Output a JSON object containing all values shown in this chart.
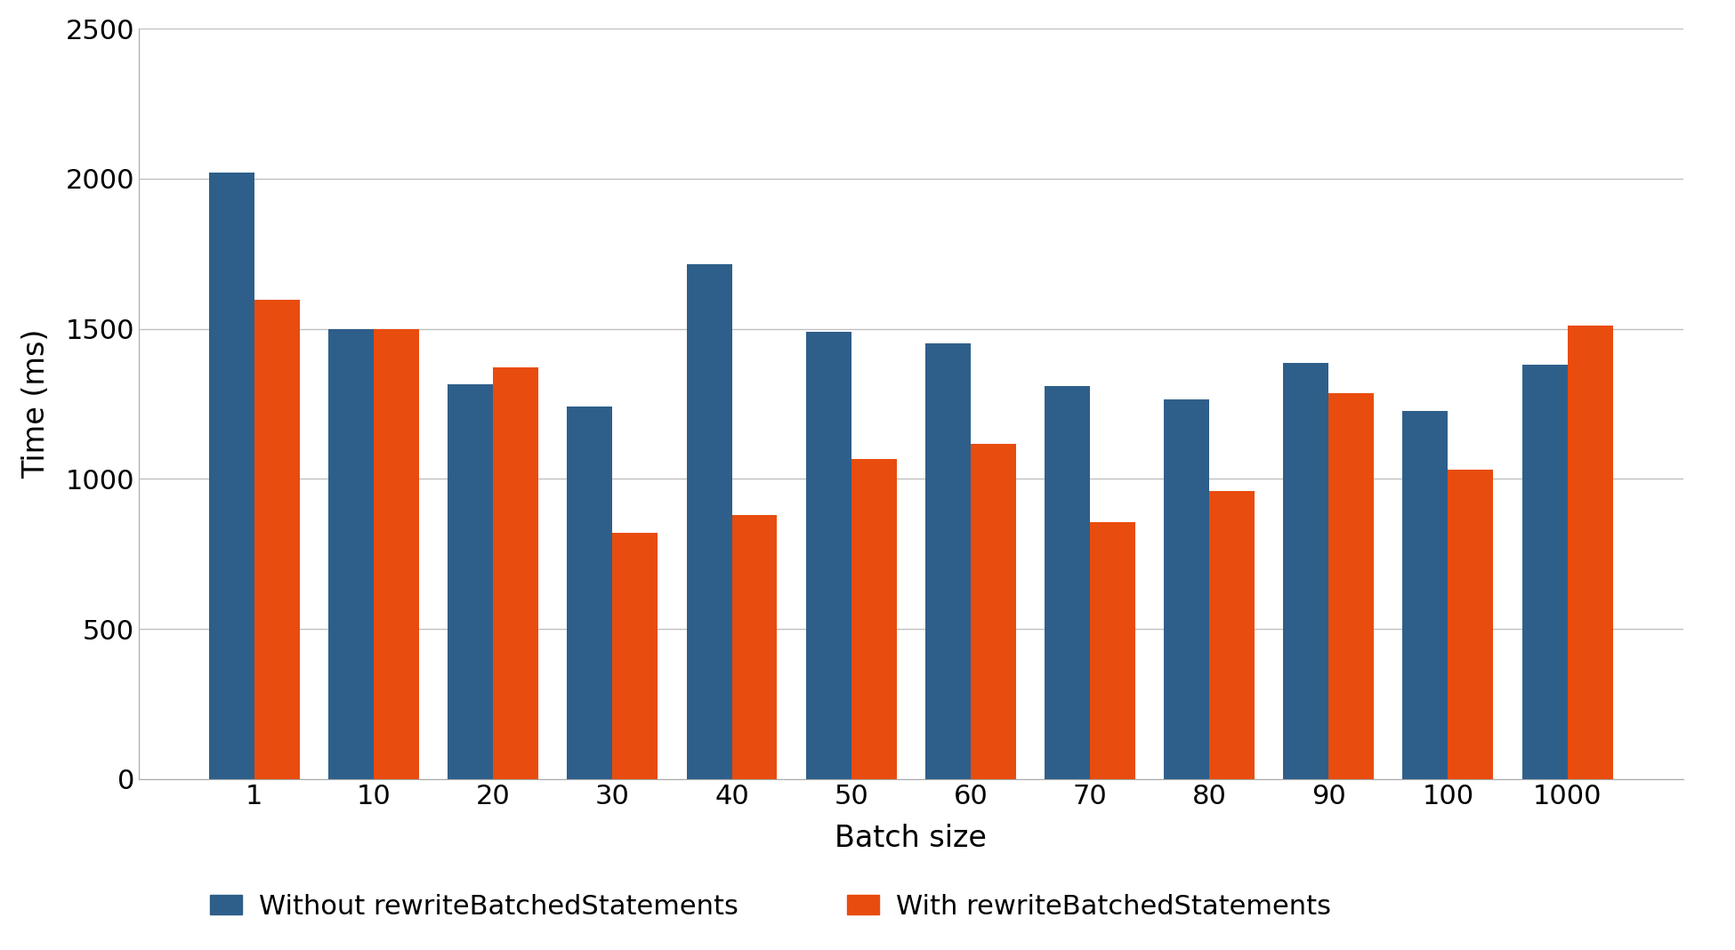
{
  "categories": [
    "1",
    "10",
    "20",
    "30",
    "40",
    "50",
    "60",
    "70",
    "80",
    "90",
    "100",
    "1000"
  ],
  "without_rewrite": [
    2020,
    1500,
    1315,
    1240,
    1715,
    1490,
    1450,
    1310,
    1265,
    1385,
    1225,
    1380
  ],
  "with_rewrite": [
    1595,
    1500,
    1370,
    820,
    880,
    1065,
    1115,
    855,
    960,
    1285,
    1030,
    1510
  ],
  "color_without": "#2e5f8a",
  "color_with": "#e84c0e",
  "ylabel": "Time (ms)",
  "xlabel": "Batch size",
  "ylim": [
    0,
    2500
  ],
  "yticks": [
    0,
    500,
    1000,
    1500,
    2000,
    2500
  ],
  "legend_without": "Without rewriteBatchedStatements",
  "legend_with": "With rewriteBatchedStatements",
  "background_color": "#ffffff",
  "grid_color": "#c0c0c0"
}
